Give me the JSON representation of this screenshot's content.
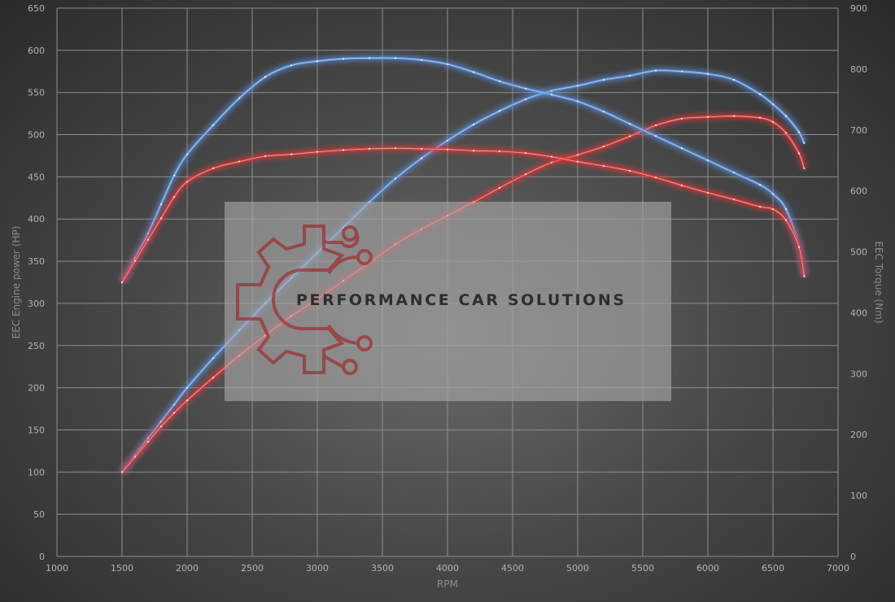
{
  "chart_data": {
    "type": "line",
    "xlabel": "RPM",
    "ylabel": "EEC Engine power (HP)",
    "y2label": "EEC Torque (Nm)",
    "xlim": [
      1000,
      7000
    ],
    "ylim": [
      0,
      650
    ],
    "y2lim": [
      0,
      900
    ],
    "xticks": [
      1000,
      1500,
      2000,
      2500,
      3000,
      3500,
      4000,
      4500,
      5000,
      5500,
      6000,
      6500,
      7000
    ],
    "yticks": [
      0,
      50,
      100,
      150,
      200,
      250,
      300,
      350,
      400,
      450,
      500,
      550,
      600,
      650
    ],
    "y2ticks": [
      0,
      100,
      200,
      300,
      400,
      500,
      600,
      700,
      800,
      900
    ],
    "grid": true,
    "series": [
      {
        "id": "power-tuned",
        "axis": "left",
        "color": "#5b8fd6",
        "x": [
          1500,
          1600,
          1700,
          1800,
          1900,
          2000,
          2200,
          2400,
          2600,
          2800,
          3000,
          3200,
          3400,
          3600,
          3800,
          4000,
          4200,
          4400,
          4600,
          4800,
          5000,
          5200,
          5400,
          5600,
          5800,
          6000,
          6200,
          6400,
          6500,
          6600,
          6700,
          6740
        ],
        "y": [
          100,
          120,
          140,
          160,
          180,
          200,
          235,
          268,
          300,
          330,
          360,
          390,
          420,
          448,
          472,
          493,
          512,
          528,
          542,
          552,
          558,
          565,
          570,
          576,
          575,
          572,
          565,
          548,
          536,
          522,
          503,
          490
        ]
      },
      {
        "id": "power-stock",
        "axis": "left",
        "color": "#d83a3a",
        "x": [
          1500,
          1600,
          1700,
          1800,
          1900,
          2000,
          2200,
          2400,
          2600,
          2800,
          3000,
          3200,
          3400,
          3600,
          3800,
          4000,
          4200,
          4400,
          4600,
          4800,
          5000,
          5200,
          5400,
          5600,
          5800,
          6000,
          6200,
          6400,
          6500,
          6600,
          6700,
          6740
        ],
        "y": [
          100,
          118,
          136,
          154,
          170,
          185,
          212,
          238,
          262,
          285,
          305,
          327,
          348,
          370,
          388,
          404,
          420,
          437,
          453,
          467,
          476,
          486,
          498,
          511,
          519,
          521,
          522,
          520,
          515,
          502,
          478,
          460
        ]
      },
      {
        "id": "torque-tuned",
        "axis": "right",
        "color": "#5b8fd6",
        "x": [
          1500,
          1600,
          1700,
          1800,
          1900,
          2000,
          2200,
          2400,
          2600,
          2800,
          3000,
          3200,
          3400,
          3600,
          3800,
          4000,
          4200,
          4400,
          4600,
          4800,
          5000,
          5200,
          5400,
          5600,
          5800,
          6000,
          6200,
          6400,
          6500,
          6600,
          6700,
          6740
        ],
        "y": [
          450,
          490,
          530,
          578,
          625,
          660,
          708,
          752,
          787,
          806,
          813,
          817,
          818,
          818,
          815,
          808,
          795,
          780,
          768,
          758,
          747,
          730,
          710,
          690,
          670,
          650,
          630,
          610,
          595,
          570,
          510,
          460
        ]
      },
      {
        "id": "torque-stock",
        "axis": "right",
        "color": "#d83a3a",
        "x": [
          1500,
          1600,
          1700,
          1800,
          1900,
          2000,
          2200,
          2400,
          2600,
          2800,
          3000,
          3200,
          3400,
          3600,
          3800,
          4000,
          4200,
          4400,
          4600,
          4800,
          5000,
          5200,
          5400,
          5600,
          5800,
          6000,
          6200,
          6400,
          6500,
          6600,
          6700,
          6740
        ],
        "y": [
          450,
          485,
          520,
          555,
          590,
          615,
          637,
          648,
          657,
          660,
          664,
          667,
          669,
          670,
          669,
          668,
          666,
          665,
          662,
          656,
          648,
          641,
          633,
          622,
          609,
          597,
          586,
          574,
          570,
          552,
          508,
          460
        ]
      }
    ]
  },
  "watermark": {
    "text": "PERFORMANCE CAR SOLUTIONS",
    "logo_color": "#9e2f2f"
  }
}
